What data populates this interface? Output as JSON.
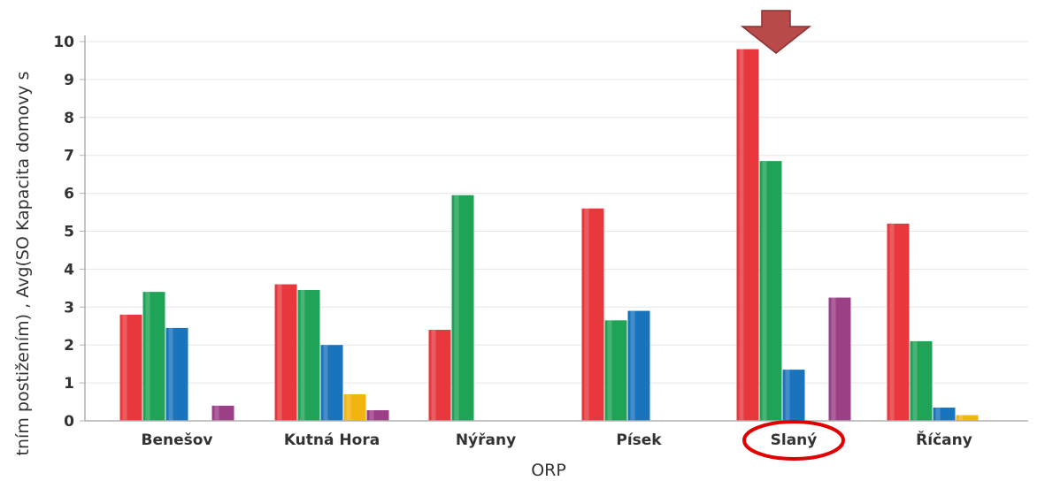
{
  "chart_data": {
    "type": "bar",
    "xlabel": "ORP",
    "ylabel": "tním postižením) , Avg(SO Kapacita domovy s",
    "categories": [
      "Benešov",
      "Kutná Hora",
      "Nýřany",
      "Písek",
      "Slaný",
      "Říčany"
    ],
    "ylim": [
      0,
      10
    ],
    "yticks": [
      0,
      1,
      2,
      3,
      4,
      5,
      6,
      7,
      8,
      9,
      10
    ],
    "grid": true,
    "legend": "none",
    "series": [
      {
        "color": "#e8383d",
        "values": [
          2.8,
          3.6,
          2.4,
          5.6,
          9.8,
          5.2
        ]
      },
      {
        "color": "#1fa356",
        "values": [
          3.4,
          3.45,
          5.95,
          2.65,
          6.85,
          2.1
        ]
      },
      {
        "color": "#1a74bd",
        "values": [
          2.45,
          2.0,
          0,
          2.9,
          1.35,
          0.35
        ]
      },
      {
        "color": "#f2b40f",
        "values": [
          0,
          0.7,
          0,
          0,
          0,
          0.15
        ]
      },
      {
        "color": "#9b3f87",
        "values": [
          0.4,
          0.28,
          0,
          0,
          3.25,
          0
        ]
      }
    ],
    "annotations": [
      {
        "type": "arrow-down",
        "category": "Slaný",
        "color": "#b84a4a"
      },
      {
        "type": "ellipse",
        "target": "Slaný label",
        "color": "#e00000"
      }
    ]
  }
}
